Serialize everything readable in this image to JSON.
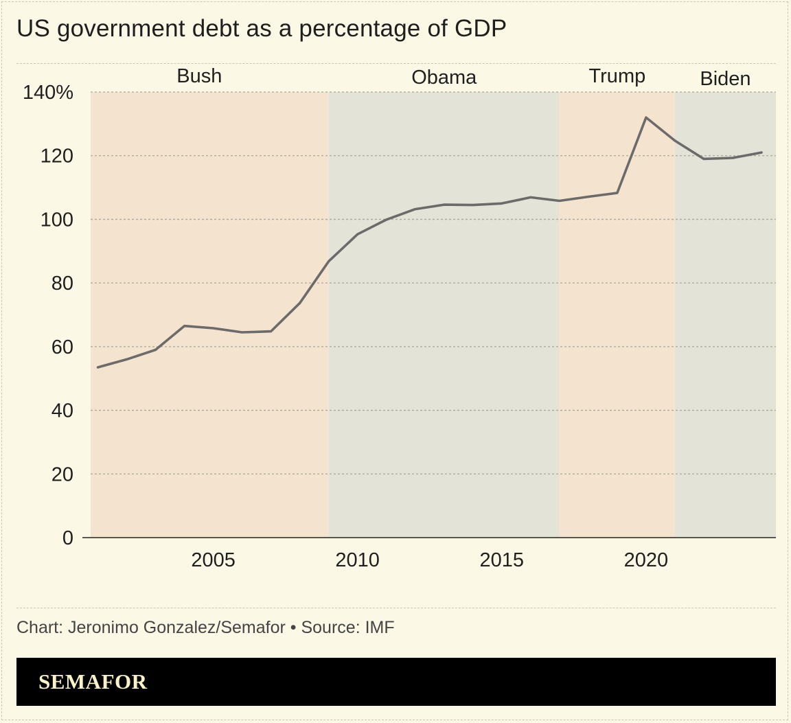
{
  "title": "US government debt as a percentage of GDP",
  "footer": {
    "credit": "Chart: Jeronimo Gonzalez/Semafor • Source: IMF",
    "brand": "SEMAFOR"
  },
  "colors": {
    "background": "#fbf8e6",
    "republican_band": "#f4e4cf",
    "democrat_band": "#e3e3d7",
    "line": "#6b6b6b",
    "brand_bar": "#000000"
  },
  "chart_data": {
    "type": "line",
    "title": "US government debt as a percentage of GDP",
    "xlabel": "",
    "ylabel": "",
    "xlim": [
      2000.75,
      2024.5
    ],
    "ylim": [
      0,
      140
    ],
    "y_ticks": [
      "0",
      "20",
      "40",
      "60",
      "80",
      "100",
      "120",
      "140%"
    ],
    "y_tick_values": [
      0,
      20,
      40,
      60,
      80,
      100,
      120,
      140
    ],
    "x_ticks": [
      "2005",
      "2010",
      "2015",
      "2020"
    ],
    "x_tick_values": [
      2005,
      2010,
      2015,
      2020
    ],
    "grid": true,
    "bands": [
      {
        "label": "Bush",
        "start": 2000.75,
        "end": 2009,
        "color": "#f4e4cf"
      },
      {
        "label": "Obama",
        "start": 2009,
        "end": 2017,
        "color": "#e3e3d7"
      },
      {
        "label": "Trump",
        "start": 2017,
        "end": 2021,
        "color": "#f4e4cf"
      },
      {
        "label": "Biden",
        "start": 2021,
        "end": 2024.5,
        "color": "#e3e3d7"
      }
    ],
    "series": [
      {
        "x": [
          2001,
          2002,
          2003,
          2004,
          2005,
          2006,
          2007,
          2008,
          2009,
          2010,
          2011,
          2012,
          2013,
          2014,
          2015,
          2016,
          2017,
          2018,
          2019,
          2020,
          2021,
          2022,
          2023,
          2024
        ],
        "values": [
          53.5,
          56,
          59,
          66.5,
          65.8,
          64.5,
          64.8,
          73.7,
          86.8,
          95.3,
          99.9,
          103.2,
          104.6,
          104.5,
          105,
          106.9,
          105.8,
          107.1,
          108.3,
          132,
          124.7,
          119,
          119.3,
          121
        ]
      }
    ]
  }
}
